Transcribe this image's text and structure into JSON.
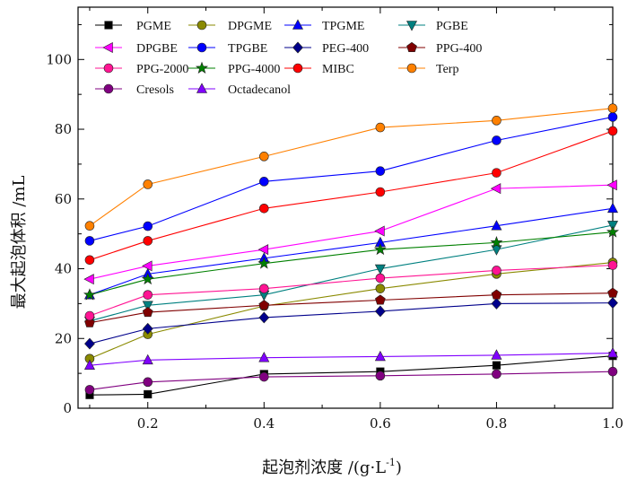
{
  "chart_data": {
    "type": "line",
    "title": "",
    "xlabel": "起泡剂浓度 /(g·L",
    "xlabel_sup": "-1",
    "xlabel_close": ")",
    "ylabel": "最大起泡体积 /mL",
    "xlim": [
      0.08,
      1.0
    ],
    "ylim": [
      0,
      115
    ],
    "xticks": [
      0.2,
      0.4,
      0.6,
      0.8,
      1.0
    ],
    "xtick_labels": [
      "0.2",
      "0.4",
      "0.6",
      "0.8",
      "1.0"
    ],
    "yticks": [
      0,
      20,
      40,
      60,
      80,
      100
    ],
    "ytick_labels": [
      "0",
      "20",
      "40",
      "60",
      "80",
      "100"
    ],
    "grid": false,
    "legend_position": "top-left",
    "x": [
      0.1,
      0.2,
      0.4,
      0.6,
      0.8,
      1.0
    ],
    "series": [
      {
        "name": "PGME",
        "color": "#000000",
        "marker": "square",
        "values": [
          3.8,
          4.0,
          9.8,
          10.5,
          12.3,
          15.0
        ]
      },
      {
        "name": "DPGME",
        "color": "#8a8a00",
        "marker": "circle",
        "values": [
          14.2,
          21.2,
          29.3,
          34.3,
          38.5,
          41.8
        ]
      },
      {
        "name": "TPGME",
        "color": "#0000ff",
        "marker": "triangle-up",
        "values": [
          32.5,
          38.5,
          43.0,
          47.5,
          52.3,
          57.3
        ]
      },
      {
        "name": "PGBE",
        "color": "#008080",
        "marker": "triangle-down",
        "values": [
          25.0,
          29.5,
          32.5,
          40.0,
          45.5,
          52.5
        ]
      },
      {
        "name": "DPGBE",
        "color": "#ff00ff",
        "marker": "triangle-left",
        "values": [
          37.0,
          40.8,
          45.5,
          50.8,
          63.0,
          64.0
        ]
      },
      {
        "name": "TPGBE",
        "color": "#0000ff",
        "marker": "circle",
        "values": [
          48.0,
          52.2,
          65.0,
          68.0,
          76.8,
          83.5
        ]
      },
      {
        "name": "PEG-400",
        "color": "#00008b",
        "marker": "diamond",
        "values": [
          18.5,
          22.8,
          26.0,
          27.8,
          30.0,
          30.2
        ]
      },
      {
        "name": "PPG-400",
        "color": "#800000",
        "marker": "pentagon",
        "values": [
          24.5,
          27.5,
          29.5,
          31.0,
          32.5,
          33.0
        ]
      },
      {
        "name": "PPG-2000",
        "color": "#ff1493",
        "marker": "circle",
        "values": [
          26.5,
          32.5,
          34.3,
          37.3,
          39.5,
          41.0
        ]
      },
      {
        "name": "PPG-4000",
        "color": "#008000",
        "marker": "star",
        "values": [
          32.5,
          37.0,
          41.5,
          45.5,
          47.5,
          50.5
        ]
      },
      {
        "name": "MIBC",
        "color": "#ff0000",
        "marker": "circle",
        "values": [
          42.5,
          48.0,
          57.3,
          62.0,
          67.5,
          79.5
        ]
      },
      {
        "name": "Terp",
        "color": "#ff8000",
        "marker": "circle",
        "values": [
          52.3,
          64.2,
          72.2,
          80.5,
          82.5,
          86.0
        ]
      },
      {
        "name": "Cresols",
        "color": "#800080",
        "marker": "circle",
        "values": [
          5.3,
          7.5,
          9.0,
          9.3,
          9.8,
          10.5
        ]
      },
      {
        "name": "Octadecanol",
        "color": "#8000ff",
        "marker": "triangle-up",
        "values": [
          12.3,
          13.8,
          14.5,
          14.8,
          15.2,
          15.8
        ]
      }
    ]
  }
}
